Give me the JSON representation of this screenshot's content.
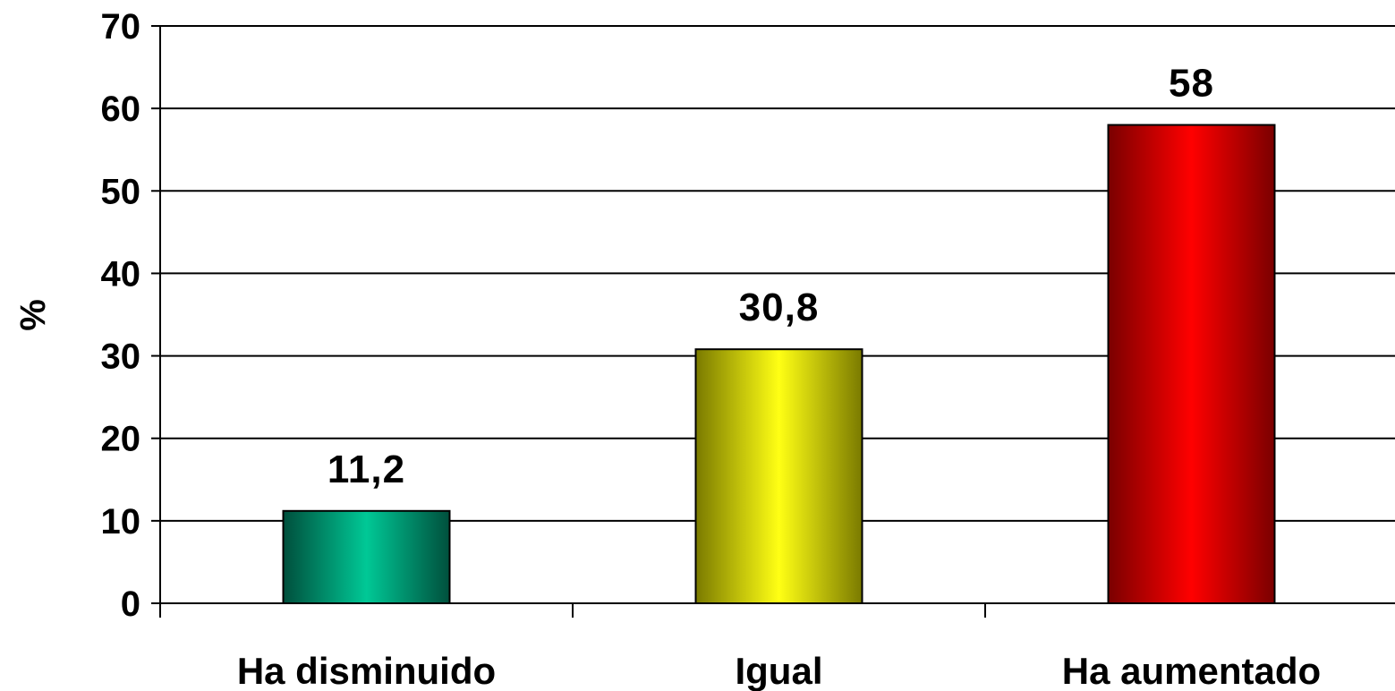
{
  "chart_data": {
    "type": "bar",
    "categories": [
      "Ha disminuido",
      "Igual",
      "Ha aumentado"
    ],
    "values": [
      11.2,
      30.8,
      58
    ],
    "value_labels": [
      "11,2",
      "30,8",
      "58"
    ],
    "title": "",
    "xlabel": "",
    "ylabel": "%",
    "ylim": [
      0,
      70
    ],
    "yticks": [
      0,
      10,
      20,
      30,
      40,
      50,
      60,
      70
    ],
    "grid": true,
    "legend": "none",
    "bar_colors": [
      {
        "edge": "#004f3c",
        "center": "#00c896"
      },
      {
        "edge": "#7a7a00",
        "center": "#ffff14"
      },
      {
        "edge": "#7a0000",
        "center": "#ff0000"
      }
    ]
  }
}
